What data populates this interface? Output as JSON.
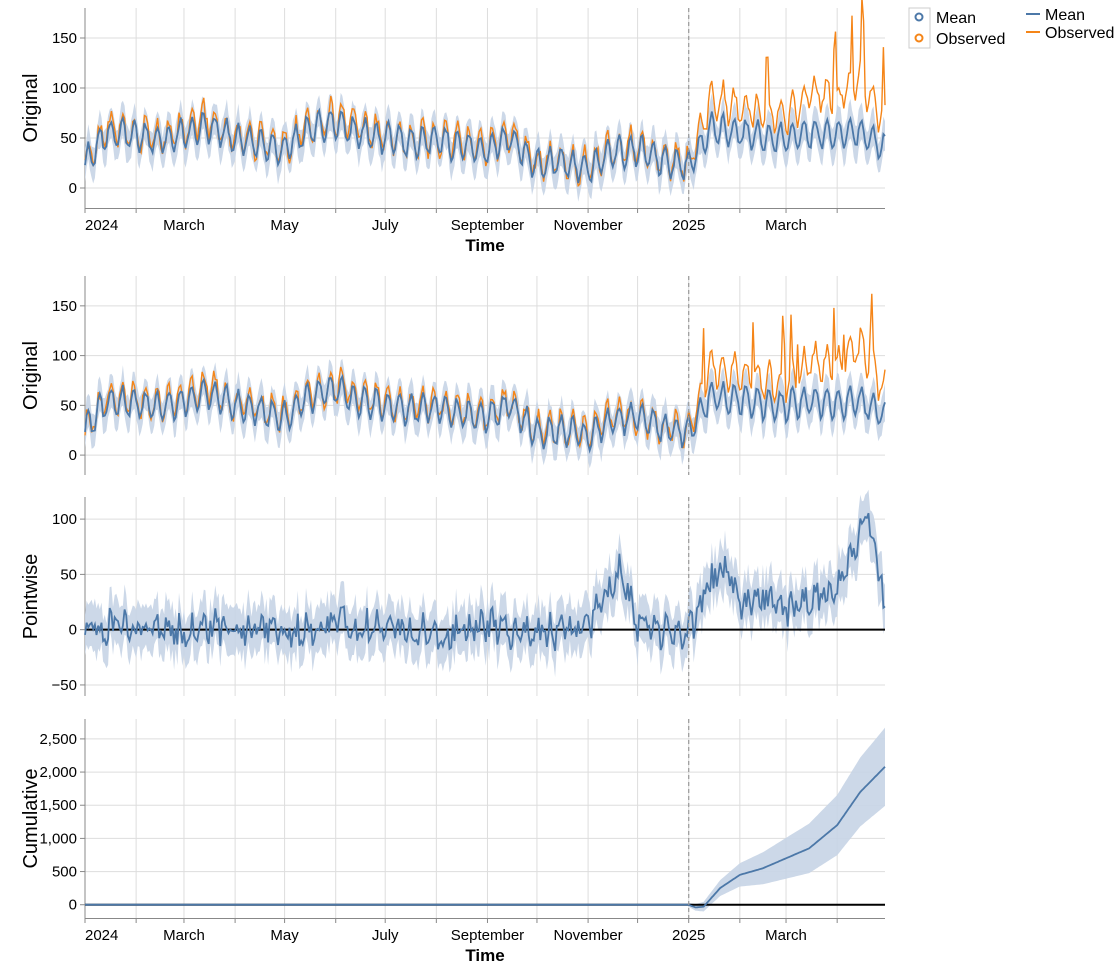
{
  "colors": {
    "mean": "#4c78a8",
    "observed": "#f58518",
    "band": "#c6d4e6",
    "grid": "#dddddd",
    "intervention": "#999999"
  },
  "legend_points": {
    "items": [
      "Mean",
      "Observed"
    ]
  },
  "legend_lines": {
    "items": [
      "Mean",
      "Observed"
    ]
  },
  "chart_data": {
    "type": "line",
    "x_range": [
      "2024-01-01",
      "2025-04-30"
    ],
    "intervention_date": "2025-01-01",
    "x_tick_labels": [
      {
        "label": "2024",
        "date": "2024-01-01"
      },
      {
        "label": "March",
        "date": "2024-03-01"
      },
      {
        "label": "May",
        "date": "2024-05-01"
      },
      {
        "label": "July",
        "date": "2024-07-01"
      },
      {
        "label": "September",
        "date": "2024-09-01"
      },
      {
        "label": "November",
        "date": "2024-11-01"
      },
      {
        "label": "2025",
        "date": "2025-01-01"
      },
      {
        "label": "March",
        "date": "2025-03-01"
      }
    ],
    "x_minor_ticks": [
      "2024-02-01",
      "2024-04-01",
      "2024-06-01",
      "2024-08-01",
      "2024-10-01",
      "2024-12-01",
      "2025-02-01",
      "2025-04-01"
    ],
    "panels": [
      {
        "id": "original-top",
        "ylabel": "Original",
        "xlabel": "Time",
        "ylim": [
          -20,
          180
        ],
        "yticks": [
          0,
          50,
          100,
          150
        ],
        "series": [
          {
            "name": "Observed",
            "points": [
              [
                "2024-01-01",
                25
              ],
              [
                "2024-01-15",
                60
              ],
              [
                "2024-02-01",
                55
              ],
              [
                "2024-02-15",
                50
              ],
              [
                "2024-03-01",
                58
              ],
              [
                "2024-03-15",
                70
              ],
              [
                "2024-04-01",
                52
              ],
              [
                "2024-04-15",
                48
              ],
              [
                "2024-05-01",
                40
              ],
              [
                "2024-05-15",
                62
              ],
              [
                "2024-06-01",
                72
              ],
              [
                "2024-06-15",
                60
              ],
              [
                "2024-07-01",
                55
              ],
              [
                "2024-07-15",
                48
              ],
              [
                "2024-08-01",
                52
              ],
              [
                "2024-08-15",
                45
              ],
              [
                "2024-09-01",
                40
              ],
              [
                "2024-09-15",
                55
              ],
              [
                "2024-10-01",
                25
              ],
              [
                "2024-10-15",
                28
              ],
              [
                "2024-11-01",
                20
              ],
              [
                "2024-11-15",
                38
              ],
              [
                "2024-12-01",
                42
              ],
              [
                "2024-12-15",
                30
              ],
              [
                "2025-01-01",
                25
              ],
              [
                "2025-01-15",
                90
              ],
              [
                "2025-02-01",
                80
              ],
              [
                "2025-02-15",
                75
              ],
              [
                "2025-03-01",
                70
              ],
              [
                "2025-03-15",
                95
              ],
              [
                "2025-04-01",
                90
              ],
              [
                "2025-04-15",
                110
              ],
              [
                "2025-04-30",
                65
              ]
            ]
          },
          {
            "name": "Mean",
            "points": [
              [
                "2024-01-01",
                25
              ],
              [
                "2024-01-15",
                55
              ],
              [
                "2024-02-01",
                52
              ],
              [
                "2024-02-15",
                48
              ],
              [
                "2024-03-01",
                55
              ],
              [
                "2024-03-15",
                62
              ],
              [
                "2024-04-01",
                50
              ],
              [
                "2024-04-15",
                45
              ],
              [
                "2024-05-01",
                38
              ],
              [
                "2024-05-15",
                58
              ],
              [
                "2024-06-01",
                65
              ],
              [
                "2024-06-15",
                55
              ],
              [
                "2024-07-01",
                50
              ],
              [
                "2024-07-15",
                46
              ],
              [
                "2024-08-01",
                48
              ],
              [
                "2024-08-15",
                42
              ],
              [
                "2024-09-01",
                38
              ],
              [
                "2024-09-15",
                50
              ],
              [
                "2024-10-01",
                22
              ],
              [
                "2024-10-15",
                26
              ],
              [
                "2024-11-01",
                18
              ],
              [
                "2024-11-15",
                35
              ],
              [
                "2024-12-01",
                38
              ],
              [
                "2024-12-15",
                28
              ],
              [
                "2025-01-01",
                22
              ],
              [
                "2025-01-15",
                60
              ],
              [
                "2025-02-01",
                55
              ],
              [
                "2025-02-15",
                52
              ],
              [
                "2025-03-01",
                50
              ],
              [
                "2025-03-15",
                55
              ],
              [
                "2025-04-01",
                52
              ],
              [
                "2025-04-15",
                55
              ],
              [
                "2025-04-30",
                40
              ]
            ]
          }
        ]
      },
      {
        "id": "original",
        "ylabel": "Original",
        "ylim": [
          -20,
          180
        ],
        "yticks": [
          0,
          50,
          100,
          150
        ],
        "series": [
          {
            "name": "Observed",
            "points": [
              [
                "2024-01-01",
                25
              ],
              [
                "2024-01-15",
                60
              ],
              [
                "2024-02-01",
                55
              ],
              [
                "2024-02-15",
                50
              ],
              [
                "2024-03-01",
                58
              ],
              [
                "2024-03-15",
                70
              ],
              [
                "2024-04-01",
                52
              ],
              [
                "2024-04-15",
                48
              ],
              [
                "2024-05-01",
                40
              ],
              [
                "2024-05-15",
                62
              ],
              [
                "2024-06-01",
                72
              ],
              [
                "2024-06-15",
                60
              ],
              [
                "2024-07-01",
                55
              ],
              [
                "2024-07-15",
                48
              ],
              [
                "2024-08-01",
                52
              ],
              [
                "2024-08-15",
                45
              ],
              [
                "2024-09-01",
                40
              ],
              [
                "2024-09-15",
                55
              ],
              [
                "2024-10-01",
                25
              ],
              [
                "2024-10-15",
                28
              ],
              [
                "2024-11-01",
                20
              ],
              [
                "2024-11-15",
                38
              ],
              [
                "2024-12-01",
                42
              ],
              [
                "2024-12-15",
                30
              ],
              [
                "2025-01-01",
                25
              ],
              [
                "2025-01-15",
                90
              ],
              [
                "2025-02-01",
                80
              ],
              [
                "2025-02-15",
                75
              ],
              [
                "2025-03-01",
                70
              ],
              [
                "2025-03-15",
                95
              ],
              [
                "2025-04-01",
                90
              ],
              [
                "2025-04-15",
                110
              ],
              [
                "2025-04-30",
                65
              ]
            ]
          },
          {
            "name": "Mean",
            "points": [
              [
                "2024-01-01",
                25
              ],
              [
                "2024-01-15",
                55
              ],
              [
                "2024-02-01",
                52
              ],
              [
                "2024-02-15",
                48
              ],
              [
                "2024-03-01",
                55
              ],
              [
                "2024-03-15",
                62
              ],
              [
                "2024-04-01",
                50
              ],
              [
                "2024-04-15",
                45
              ],
              [
                "2024-05-01",
                38
              ],
              [
                "2024-05-15",
                58
              ],
              [
                "2024-06-01",
                65
              ],
              [
                "2024-06-15",
                55
              ],
              [
                "2024-07-01",
                50
              ],
              [
                "2024-07-15",
                46
              ],
              [
                "2024-08-01",
                48
              ],
              [
                "2024-08-15",
                42
              ],
              [
                "2024-09-01",
                38
              ],
              [
                "2024-09-15",
                50
              ],
              [
                "2024-10-01",
                22
              ],
              [
                "2024-10-15",
                26
              ],
              [
                "2024-11-01",
                18
              ],
              [
                "2024-11-15",
                35
              ],
              [
                "2024-12-01",
                38
              ],
              [
                "2024-12-15",
                28
              ],
              [
                "2025-01-01",
                22
              ],
              [
                "2025-01-15",
                60
              ],
              [
                "2025-02-01",
                55
              ],
              [
                "2025-02-15",
                52
              ],
              [
                "2025-03-01",
                50
              ],
              [
                "2025-03-15",
                55
              ],
              [
                "2025-04-01",
                52
              ],
              [
                "2025-04-15",
                55
              ],
              [
                "2025-04-30",
                40
              ]
            ]
          }
        ]
      },
      {
        "id": "pointwise",
        "ylabel": "Pointwise",
        "ylim": [
          -60,
          120
        ],
        "yticks": [
          -50,
          0,
          50,
          100
        ],
        "series": [
          {
            "name": "Mean",
            "points": [
              [
                "2024-01-01",
                0
              ],
              [
                "2024-02-01",
                5
              ],
              [
                "2024-03-01",
                -3
              ],
              [
                "2024-04-01",
                4
              ],
              [
                "2024-05-01",
                -2
              ],
              [
                "2024-06-01",
                6
              ],
              [
                "2024-07-01",
                3
              ],
              [
                "2024-08-01",
                -4
              ],
              [
                "2024-09-01",
                2
              ],
              [
                "2024-10-01",
                -5
              ],
              [
                "2024-11-01",
                4
              ],
              [
                "2024-11-20",
                50
              ],
              [
                "2024-12-01",
                5
              ],
              [
                "2024-12-20",
                -3
              ],
              [
                "2025-01-01",
                0
              ],
              [
                "2025-01-20",
                60
              ],
              [
                "2025-02-01",
                25
              ],
              [
                "2025-02-15",
                30
              ],
              [
                "2025-03-01",
                20
              ],
              [
                "2025-03-15",
                25
              ],
              [
                "2025-04-01",
                35
              ],
              [
                "2025-04-20",
                100
              ],
              [
                "2025-04-30",
                20
              ]
            ]
          }
        ]
      },
      {
        "id": "cumulative",
        "ylabel": "Cumulative",
        "xlabel": "Time",
        "ylim": [
          -200,
          2800
        ],
        "yticks": [
          0,
          500,
          1000,
          1500,
          2000,
          2500
        ],
        "series": [
          {
            "name": "Mean",
            "points": [
              [
                "2024-01-01",
                0
              ],
              [
                "2025-01-01",
                0
              ],
              [
                "2025-01-05",
                -40
              ],
              [
                "2025-01-10",
                -30
              ],
              [
                "2025-01-20",
                250
              ],
              [
                "2025-02-01",
                450
              ],
              [
                "2025-02-15",
                550
              ],
              [
                "2025-03-01",
                700
              ],
              [
                "2025-03-15",
                850
              ],
              [
                "2025-04-01",
                1200
              ],
              [
                "2025-04-15",
                1700
              ],
              [
                "2025-04-30",
                2080
              ]
            ]
          }
        ]
      }
    ]
  }
}
